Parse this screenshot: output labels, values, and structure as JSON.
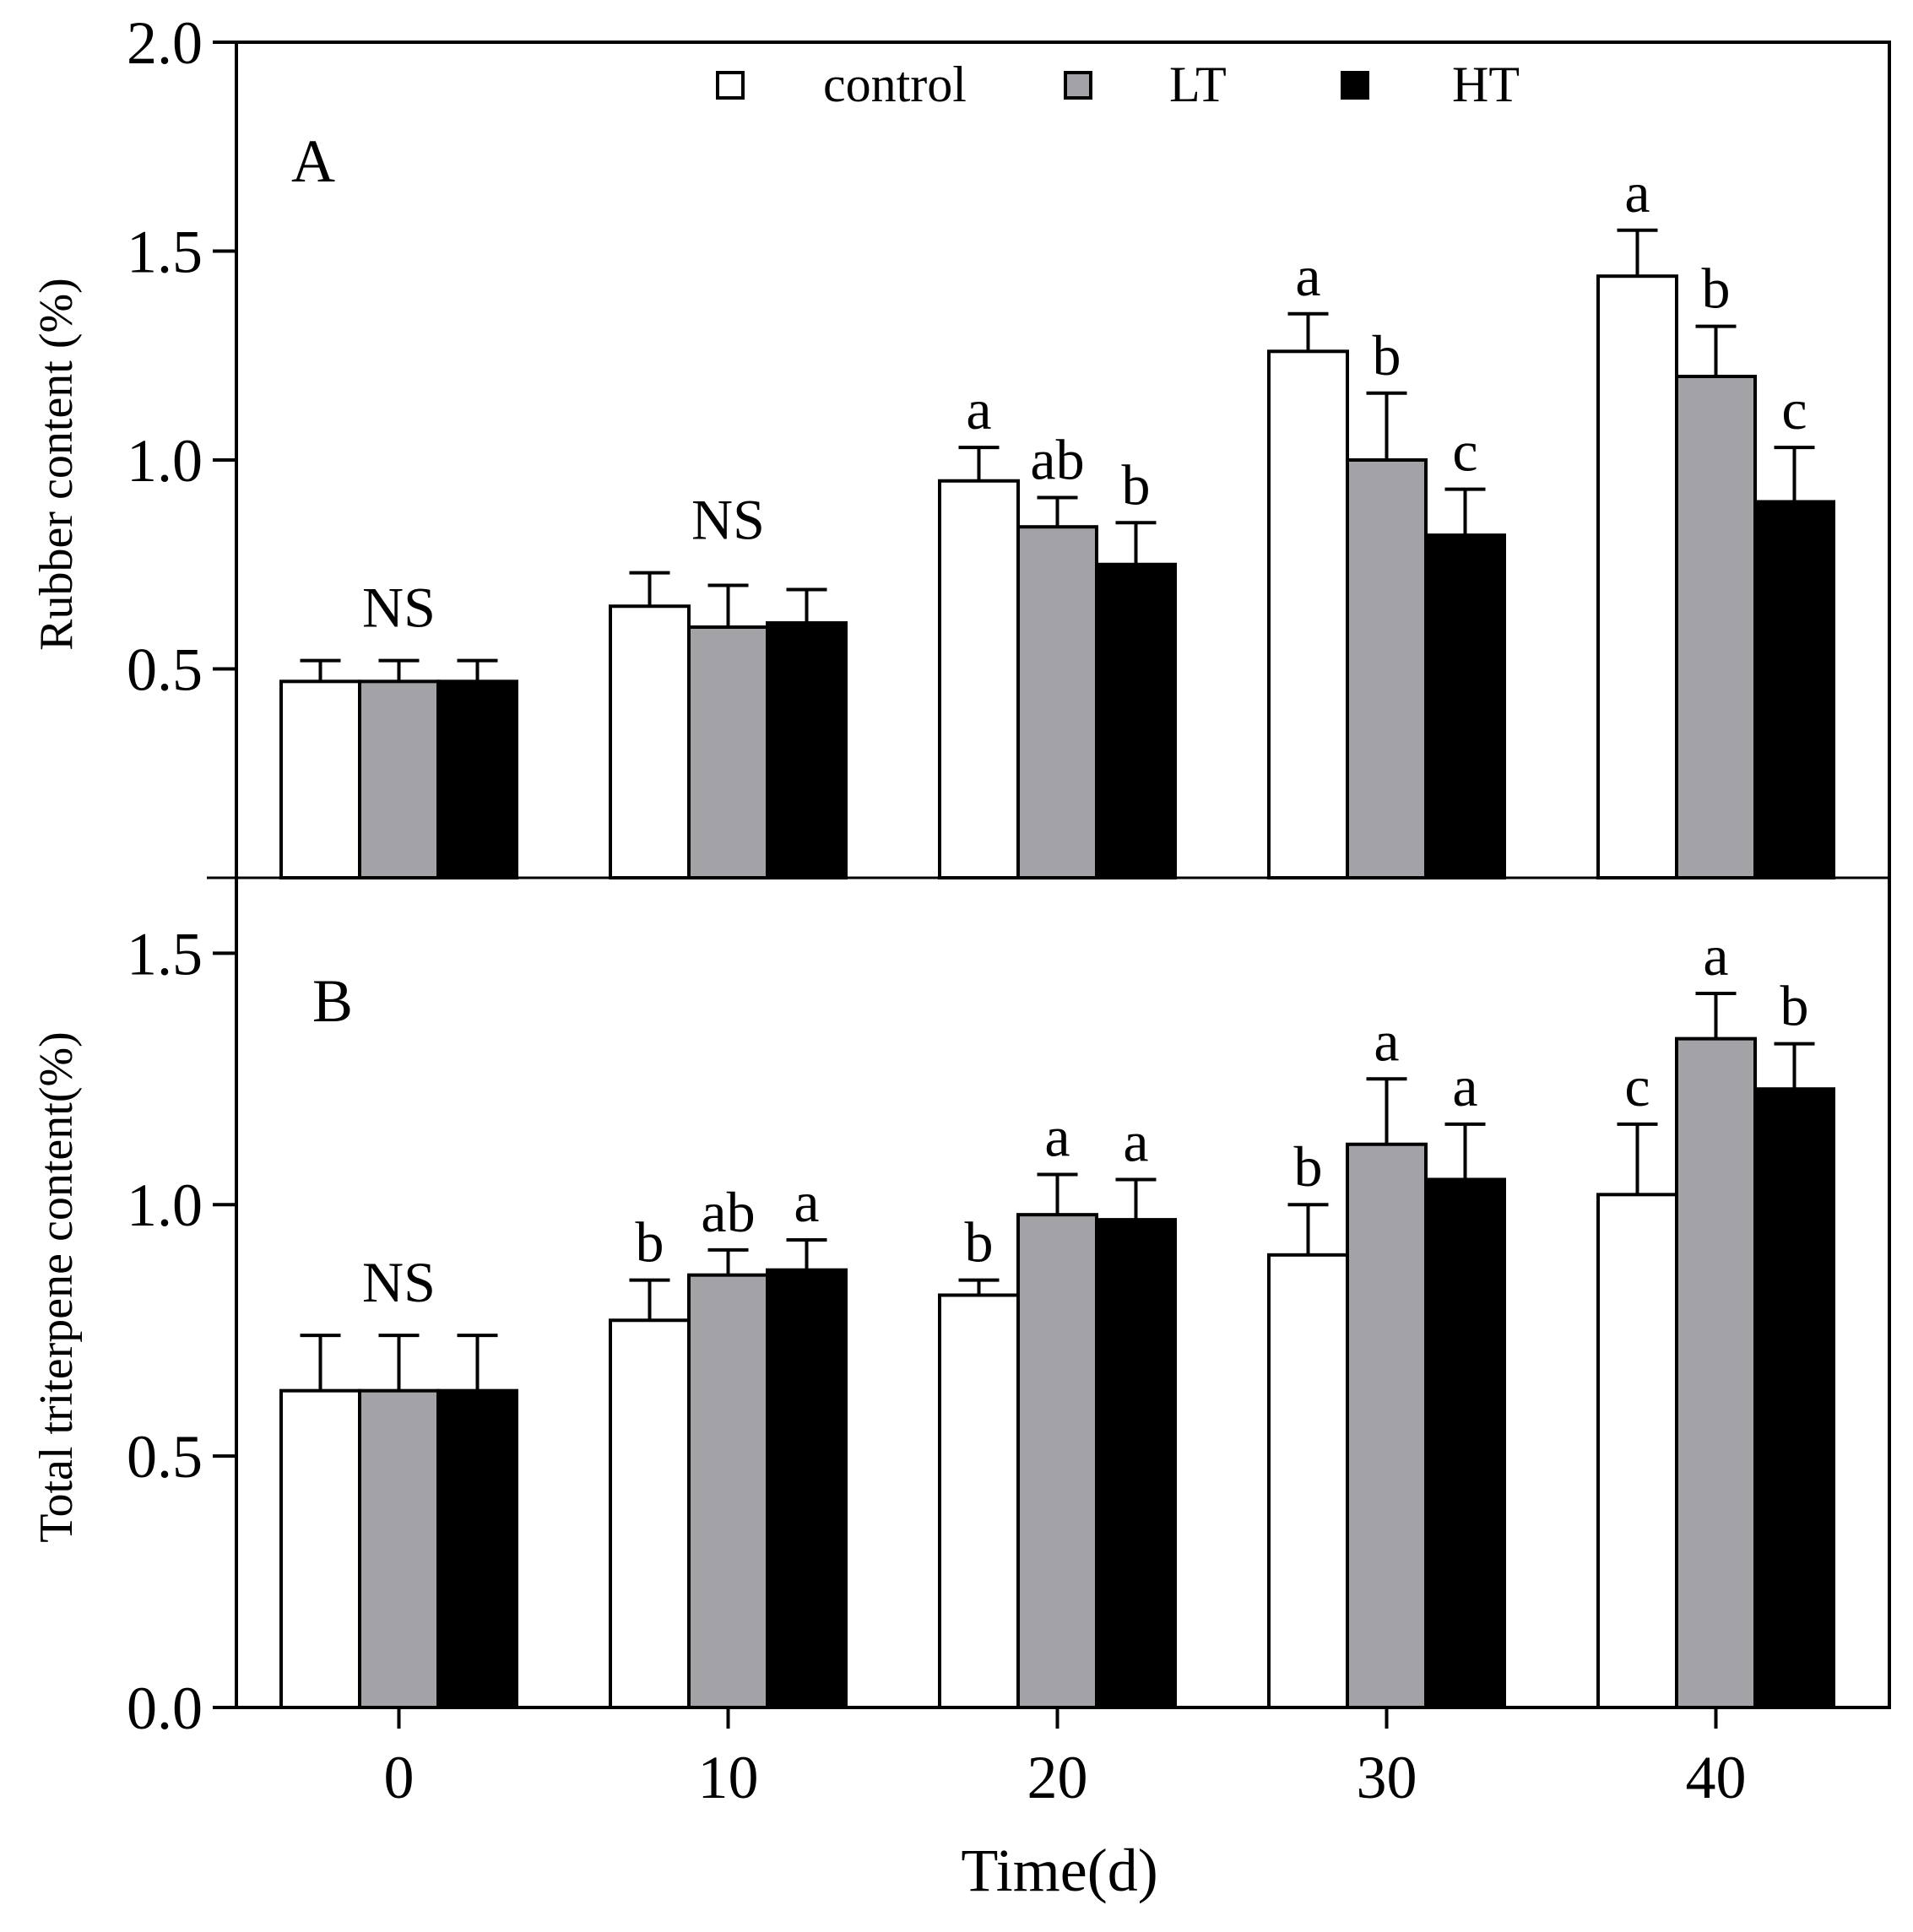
{
  "chart_data": [
    {
      "panel": "A",
      "type": "bar",
      "ylabel": "Rubber content (%)",
      "xlabel": "Time(d)",
      "ylim": [
        0,
        2.0
      ],
      "yticks": [
        0.5,
        1.0,
        1.5,
        2.0
      ],
      "categories": [
        "0",
        "10",
        "20",
        "30",
        "40"
      ],
      "series": [
        {
          "name": "control",
          "color": "#ffffff",
          "values": [
            0.47,
            0.65,
            0.95,
            1.26,
            1.44
          ],
          "errors": [
            0.05,
            0.08,
            0.08,
            0.09,
            0.11
          ]
        },
        {
          "name": "LT",
          "color": "#a3a2a7",
          "values": [
            0.47,
            0.6,
            0.84,
            1.0,
            1.2
          ],
          "errors": [
            0.05,
            0.1,
            0.07,
            0.16,
            0.12
          ]
        },
        {
          "name": "HT",
          "color": "#000000",
          "values": [
            0.47,
            0.61,
            0.75,
            0.82,
            0.9
          ],
          "errors": [
            0.05,
            0.08,
            0.1,
            0.11,
            0.13
          ]
        }
      ],
      "annotations": [
        {
          "category": "0",
          "text": "NS"
        },
        {
          "category": "10",
          "text": "NS"
        },
        {
          "category": "20",
          "series": "control",
          "text": "a"
        },
        {
          "category": "20",
          "series": "LT",
          "text": "ab"
        },
        {
          "category": "20",
          "series": "HT",
          "text": "b"
        },
        {
          "category": "30",
          "series": "control",
          "text": "a"
        },
        {
          "category": "30",
          "series": "LT",
          "text": "b"
        },
        {
          "category": "30",
          "series": "HT",
          "text": "c"
        },
        {
          "category": "40",
          "series": "control",
          "text": "a"
        },
        {
          "category": "40",
          "series": "LT",
          "text": "b"
        },
        {
          "category": "40",
          "series": "HT",
          "text": "c"
        }
      ]
    },
    {
      "panel": "B",
      "type": "bar",
      "ylabel": "Total triterpene content(%)",
      "xlabel": "Time(d)",
      "ylim": [
        0,
        1.65
      ],
      "yticks": [
        0.0,
        0.5,
        1.0,
        1.5
      ],
      "categories": [
        "0",
        "10",
        "20",
        "30",
        "40"
      ],
      "series": [
        {
          "name": "control",
          "color": "#ffffff",
          "values": [
            0.63,
            0.77,
            0.82,
            0.9,
            1.02
          ],
          "errors": [
            0.11,
            0.08,
            0.03,
            0.1,
            0.14
          ]
        },
        {
          "name": "LT",
          "color": "#a3a2a7",
          "values": [
            0.63,
            0.86,
            0.98,
            1.12,
            1.33
          ],
          "errors": [
            0.11,
            0.05,
            0.08,
            0.13,
            0.09
          ]
        },
        {
          "name": "HT",
          "color": "#000000",
          "values": [
            0.63,
            0.87,
            0.97,
            1.05,
            1.23
          ],
          "errors": [
            0.11,
            0.06,
            0.08,
            0.11,
            0.09
          ]
        }
      ],
      "annotations": [
        {
          "category": "0",
          "text": "NS"
        },
        {
          "category": "10",
          "series": "control",
          "text": "b"
        },
        {
          "category": "10",
          "series": "LT",
          "text": "ab"
        },
        {
          "category": "10",
          "series": "HT",
          "text": "a"
        },
        {
          "category": "20",
          "series": "control",
          "text": "b"
        },
        {
          "category": "20",
          "series": "LT",
          "text": "a"
        },
        {
          "category": "20",
          "series": "HT",
          "text": "a"
        },
        {
          "category": "30",
          "series": "control",
          "text": "b"
        },
        {
          "category": "30",
          "series": "LT",
          "text": "a"
        },
        {
          "category": "30",
          "series": "HT",
          "text": "a"
        },
        {
          "category": "40",
          "series": "control",
          "text": "c"
        },
        {
          "category": "40",
          "series": "LT",
          "text": "a"
        },
        {
          "category": "40",
          "series": "HT",
          "text": "b"
        }
      ]
    }
  ],
  "legend": {
    "placement": "top-center",
    "entries": [
      {
        "label": "control",
        "color": "#ffffff"
      },
      {
        "label": "LT",
        "color": "#a3a2a7"
      },
      {
        "label": "HT",
        "color": "#000000"
      }
    ]
  },
  "panel_labels": {
    "a": "A",
    "b": "B"
  },
  "x_axis": {
    "title": "Time(d)"
  }
}
